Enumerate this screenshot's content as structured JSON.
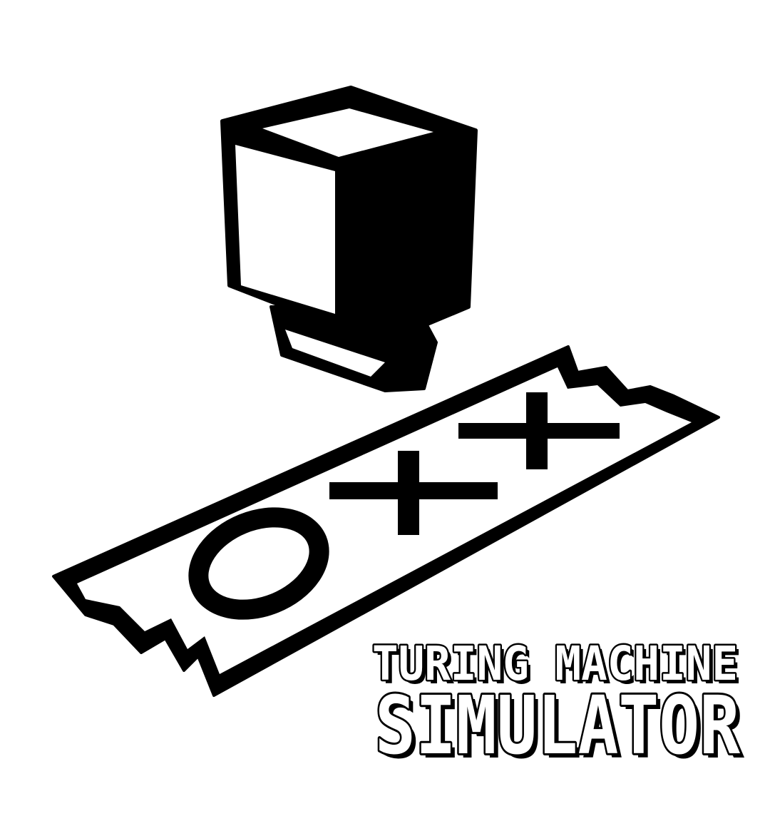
{
  "title": {
    "line1": "TURING MACHINE",
    "line2": "SIMULATOR"
  },
  "logo": {
    "icon": "turing-machine-head-and-tape-icon",
    "tape_symbols": [
      "O",
      "+",
      "+"
    ]
  },
  "colors": {
    "ink": "#000000",
    "paper": "#ffffff"
  }
}
